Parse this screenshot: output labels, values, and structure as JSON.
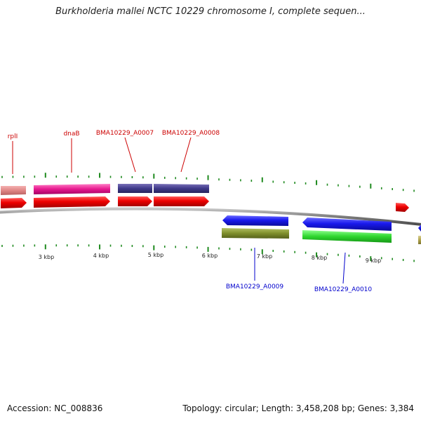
{
  "header": {
    "title": "Burkholderia mallei NCTC 10229 chromosome I, complete sequen..."
  },
  "footer": {
    "accession": "Accession: NC_008836",
    "summary": "Topology: circular; Length: 3,458,208 bp; Genes: 3,384"
  },
  "colors": {
    "backbone": "#8a8a8a",
    "tick": "#1f8a1f",
    "forward_label": "#cc0000",
    "reverse_label": "#0000cc",
    "cds_forward": "#ee0000",
    "cds_reverse": "#1a1aee"
  },
  "scale": {
    "labels": [
      "3 kbp",
      "4 kbp",
      "5 kbp",
      "6 kbp",
      "7 kbp",
      "8 kbp",
      "9 kbp"
    ]
  },
  "genes": {
    "forward_labels": [
      "rplI",
      "dnaB",
      "BMA10229_A0007",
      "BMA10229_A0008"
    ],
    "reverse_labels": [
      "BMA10229_A0009",
      "BMA10229_A0010"
    ]
  }
}
